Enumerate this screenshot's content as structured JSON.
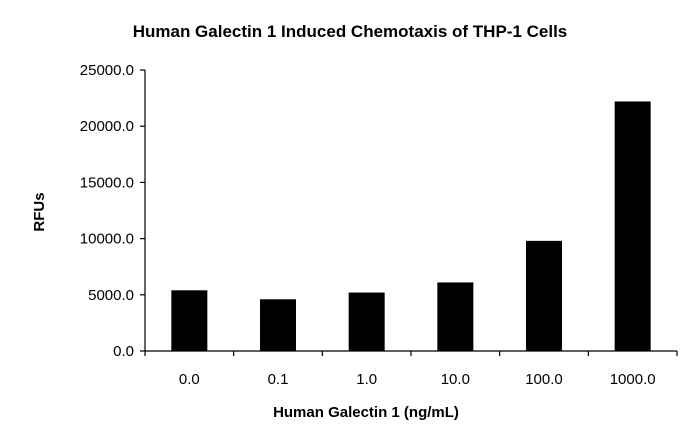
{
  "chart_data": {
    "type": "bar",
    "title": "Human Galectin 1 Induced Chemotaxis of THP-1 Cells",
    "xlabel": "Human Galectin 1 (ng/mL)",
    "ylabel": "RFUs",
    "categories": [
      "0.0",
      "0.1",
      "1.0",
      "10.0",
      "100.0",
      "1000.0"
    ],
    "values": [
      5400,
      4600,
      5200,
      6100,
      9800,
      22200
    ],
    "ylim": [
      0,
      25000
    ],
    "yticks": [
      0,
      5000,
      10000,
      15000,
      20000,
      25000
    ],
    "ytick_labels": [
      "0.0",
      "5000.0",
      "10000.0",
      "15000.0",
      "20000.0",
      "25000.0"
    ],
    "grid": false,
    "legend": "none",
    "bar_color": "#000000"
  }
}
